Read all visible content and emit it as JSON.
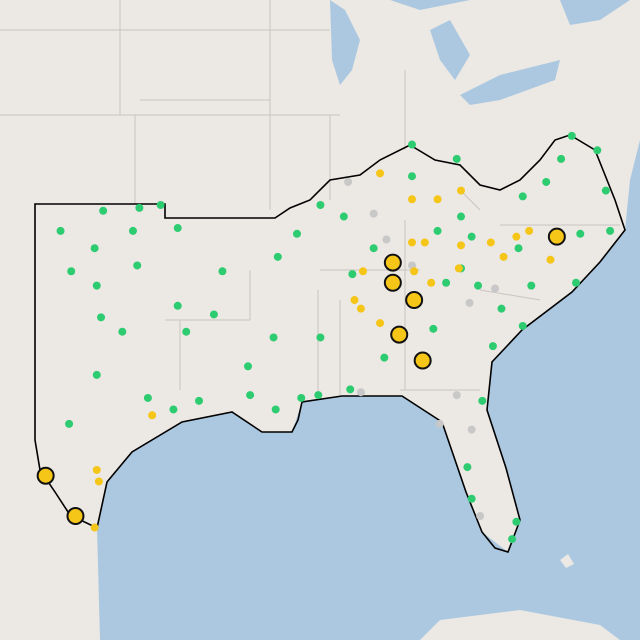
{
  "map": {
    "projection": {
      "lon0": -103,
      "lat0": 37
    },
    "groups": [
      {
        "kind": "gray",
        "color": "#c8c8c8",
        "radius": 4,
        "outline": false,
        "points": [
          [
            -88.3,
            37.8
          ],
          [
            -87.1,
            36.7
          ],
          [
            -86.5,
            35.8
          ],
          [
            -81.4,
            34.1
          ],
          [
            -82.6,
            33.6
          ],
          [
            -87.7,
            30.5
          ],
          [
            -83.2,
            30.4
          ],
          [
            -82.5,
            29.2
          ],
          [
            -82.1,
            26.2
          ],
          [
            -84.0,
            29.4
          ],
          [
            -85.3,
            34.9
          ]
        ]
      },
      {
        "kind": "green",
        "color": "#2ecc71",
        "radius": 4,
        "outline": false,
        "points": [
          [
            -101.8,
            36.1
          ],
          [
            -99.8,
            36.8
          ],
          [
            -98.1,
            36.9
          ],
          [
            -97.1,
            37.0
          ],
          [
            -100.2,
            35.5
          ],
          [
            -98.4,
            36.1
          ],
          [
            -96.3,
            36.2
          ],
          [
            -101.3,
            34.7
          ],
          [
            -98.2,
            34.9
          ],
          [
            -94.2,
            34.7
          ],
          [
            -100.1,
            34.2
          ],
          [
            -96.3,
            33.5
          ],
          [
            -99.9,
            33.1
          ],
          [
            -98.9,
            32.6
          ],
          [
            -94.6,
            33.2
          ],
          [
            -95.9,
            32.6
          ],
          [
            -100.1,
            31.1
          ],
          [
            -101.4,
            29.4
          ],
          [
            -97.7,
            30.3
          ],
          [
            -96.5,
            29.9
          ],
          [
            -95.3,
            30.2
          ],
          [
            -92.9,
            30.4
          ],
          [
            -91.7,
            29.9
          ],
          [
            -90.5,
            30.3
          ],
          [
            -89.7,
            30.4
          ],
          [
            -91.8,
            32.4
          ],
          [
            -93.0,
            31.4
          ],
          [
            -89.6,
            32.4
          ],
          [
            -91.6,
            35.2
          ],
          [
            -90.7,
            36.0
          ],
          [
            -89.6,
            37.0
          ],
          [
            -88.5,
            36.6
          ],
          [
            -88.1,
            34.6
          ],
          [
            -87.1,
            35.5
          ],
          [
            -85.3,
            39.1
          ],
          [
            -83.2,
            38.6
          ],
          [
            -85.3,
            38.0
          ],
          [
            -84.1,
            36.1
          ],
          [
            -83.0,
            36.6
          ],
          [
            -82.5,
            35.9
          ],
          [
            -80.1,
            37.3
          ],
          [
            -79.0,
            37.8
          ],
          [
            -78.3,
            38.6
          ],
          [
            -77.8,
            39.4
          ],
          [
            -76.6,
            38.9
          ],
          [
            -76.2,
            37.5
          ],
          [
            -76.0,
            36.1
          ],
          [
            -77.4,
            36.0
          ],
          [
            -77.6,
            34.3
          ],
          [
            -79.7,
            34.2
          ],
          [
            -80.3,
            35.5
          ],
          [
            -83.0,
            34.8
          ],
          [
            -83.7,
            34.3
          ],
          [
            -84.3,
            32.7
          ],
          [
            -82.2,
            34.2
          ],
          [
            -81.1,
            33.4
          ],
          [
            -80.1,
            32.8
          ],
          [
            -81.5,
            32.1
          ],
          [
            -82.0,
            30.2
          ],
          [
            -82.7,
            27.9
          ],
          [
            -80.4,
            26.0
          ],
          [
            -80.6,
            25.4
          ],
          [
            -82.5,
            26.8
          ],
          [
            -88.2,
            30.6
          ],
          [
            -86.6,
            31.7
          ]
        ]
      },
      {
        "kind": "yellow",
        "color": "#f5c518",
        "radius": 4,
        "outline": false,
        "points": [
          [
            -86.8,
            38.1
          ],
          [
            -85.3,
            37.2
          ],
          [
            -84.1,
            37.2
          ],
          [
            -83.0,
            37.5
          ],
          [
            -85.3,
            35.7
          ],
          [
            -84.7,
            35.7
          ],
          [
            -83.0,
            35.6
          ],
          [
            -81.6,
            35.7
          ],
          [
            -80.4,
            35.9
          ],
          [
            -79.8,
            36.1
          ],
          [
            -81.0,
            35.2
          ],
          [
            -78.8,
            35.1
          ],
          [
            -83.1,
            34.8
          ],
          [
            -88.0,
            33.7
          ],
          [
            -87.7,
            33.4
          ],
          [
            -86.8,
            32.9
          ],
          [
            -85.2,
            34.7
          ],
          [
            -84.4,
            34.3
          ],
          [
            -97.5,
            29.7
          ],
          [
            -100.1,
            27.8
          ],
          [
            -100.0,
            27.4
          ],
          [
            -100.2,
            25.8
          ],
          [
            -87.6,
            34.7
          ]
        ]
      },
      {
        "kind": "large",
        "color": "#f5c518",
        "radius": 8,
        "outline": true,
        "points": [
          [
            -78.5,
            35.9
          ],
          [
            -86.2,
            35.0
          ],
          [
            -86.2,
            34.3
          ],
          [
            -85.2,
            33.7
          ],
          [
            -85.9,
            32.5
          ],
          [
            -84.8,
            31.6
          ],
          [
            -102.5,
            27.6
          ],
          [
            -101.1,
            26.2
          ]
        ]
      }
    ]
  }
}
